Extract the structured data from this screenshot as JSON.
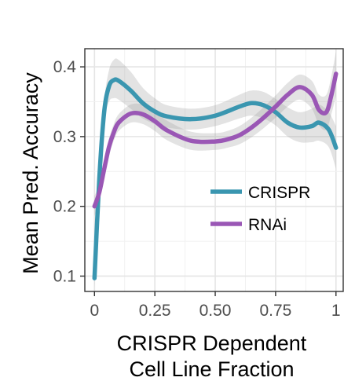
{
  "chart_data": {
    "type": "line",
    "title": "",
    "xlabel_lines": [
      "CRISPR Dependent",
      "Cell Line Fraction"
    ],
    "ylabel": "Mean Pred. Accuracy",
    "xlim": [
      -0.04,
      1.03
    ],
    "ylim": [
      0.078,
      0.426
    ],
    "xticks": [
      0,
      0.25,
      0.5,
      0.75,
      1
    ],
    "xtick_labels": [
      "0",
      "0.25",
      "0.50",
      "0.75",
      "1"
    ],
    "yticks": [
      0.1,
      0.2,
      0.3,
      0.4
    ],
    "ytick_labels": [
      "0.1",
      "0.2",
      "0.3",
      "0.4"
    ],
    "grid": true,
    "legend_position": "inside-right",
    "confidence_band_color": "#999999",
    "series": [
      {
        "name": "CRISPR",
        "color": "#3a96b0",
        "x": [
          0,
          0.02,
          0.04,
          0.06,
          0.08,
          0.1,
          0.15,
          0.2,
          0.25,
          0.3,
          0.4,
          0.5,
          0.6,
          0.65,
          0.7,
          0.75,
          0.8,
          0.85,
          0.9,
          0.93,
          0.97,
          1.0
        ],
        "y": [
          0.097,
          0.24,
          0.335,
          0.372,
          0.381,
          0.38,
          0.366,
          0.348,
          0.336,
          0.329,
          0.325,
          0.33,
          0.343,
          0.348,
          0.345,
          0.335,
          0.32,
          0.313,
          0.315,
          0.32,
          0.31,
          0.284
        ],
        "band_upper": [
          0.115,
          0.25,
          0.35,
          0.395,
          0.41,
          0.41,
          0.393,
          0.37,
          0.355,
          0.345,
          0.34,
          0.345,
          0.36,
          0.366,
          0.364,
          0.354,
          0.342,
          0.335,
          0.34,
          0.346,
          0.335,
          0.315
        ],
        "band_lower": [
          0.08,
          0.23,
          0.32,
          0.35,
          0.355,
          0.353,
          0.34,
          0.326,
          0.318,
          0.313,
          0.31,
          0.315,
          0.326,
          0.33,
          0.326,
          0.316,
          0.3,
          0.292,
          0.292,
          0.294,
          0.285,
          0.254
        ]
      },
      {
        "name": "RNAi",
        "color": "#9a57b5",
        "x": [
          0,
          0.02,
          0.04,
          0.06,
          0.08,
          0.1,
          0.15,
          0.2,
          0.25,
          0.3,
          0.4,
          0.5,
          0.55,
          0.6,
          0.65,
          0.7,
          0.75,
          0.8,
          0.85,
          0.9,
          0.93,
          0.96,
          0.98,
          1.0
        ],
        "y": [
          0.2,
          0.22,
          0.253,
          0.285,
          0.306,
          0.32,
          0.333,
          0.332,
          0.322,
          0.309,
          0.294,
          0.293,
          0.296,
          0.302,
          0.313,
          0.327,
          0.343,
          0.36,
          0.371,
          0.36,
          0.338,
          0.335,
          0.358,
          0.39
        ],
        "band_upper": [
          0.215,
          0.232,
          0.265,
          0.297,
          0.318,
          0.332,
          0.346,
          0.346,
          0.336,
          0.323,
          0.307,
          0.305,
          0.308,
          0.315,
          0.327,
          0.342,
          0.359,
          0.377,
          0.389,
          0.38,
          0.36,
          0.36,
          0.385,
          0.422
        ],
        "band_lower": [
          0.186,
          0.208,
          0.241,
          0.273,
          0.294,
          0.308,
          0.32,
          0.318,
          0.308,
          0.295,
          0.281,
          0.281,
          0.284,
          0.289,
          0.299,
          0.312,
          0.327,
          0.343,
          0.353,
          0.34,
          0.316,
          0.31,
          0.331,
          0.358
        ]
      }
    ]
  }
}
